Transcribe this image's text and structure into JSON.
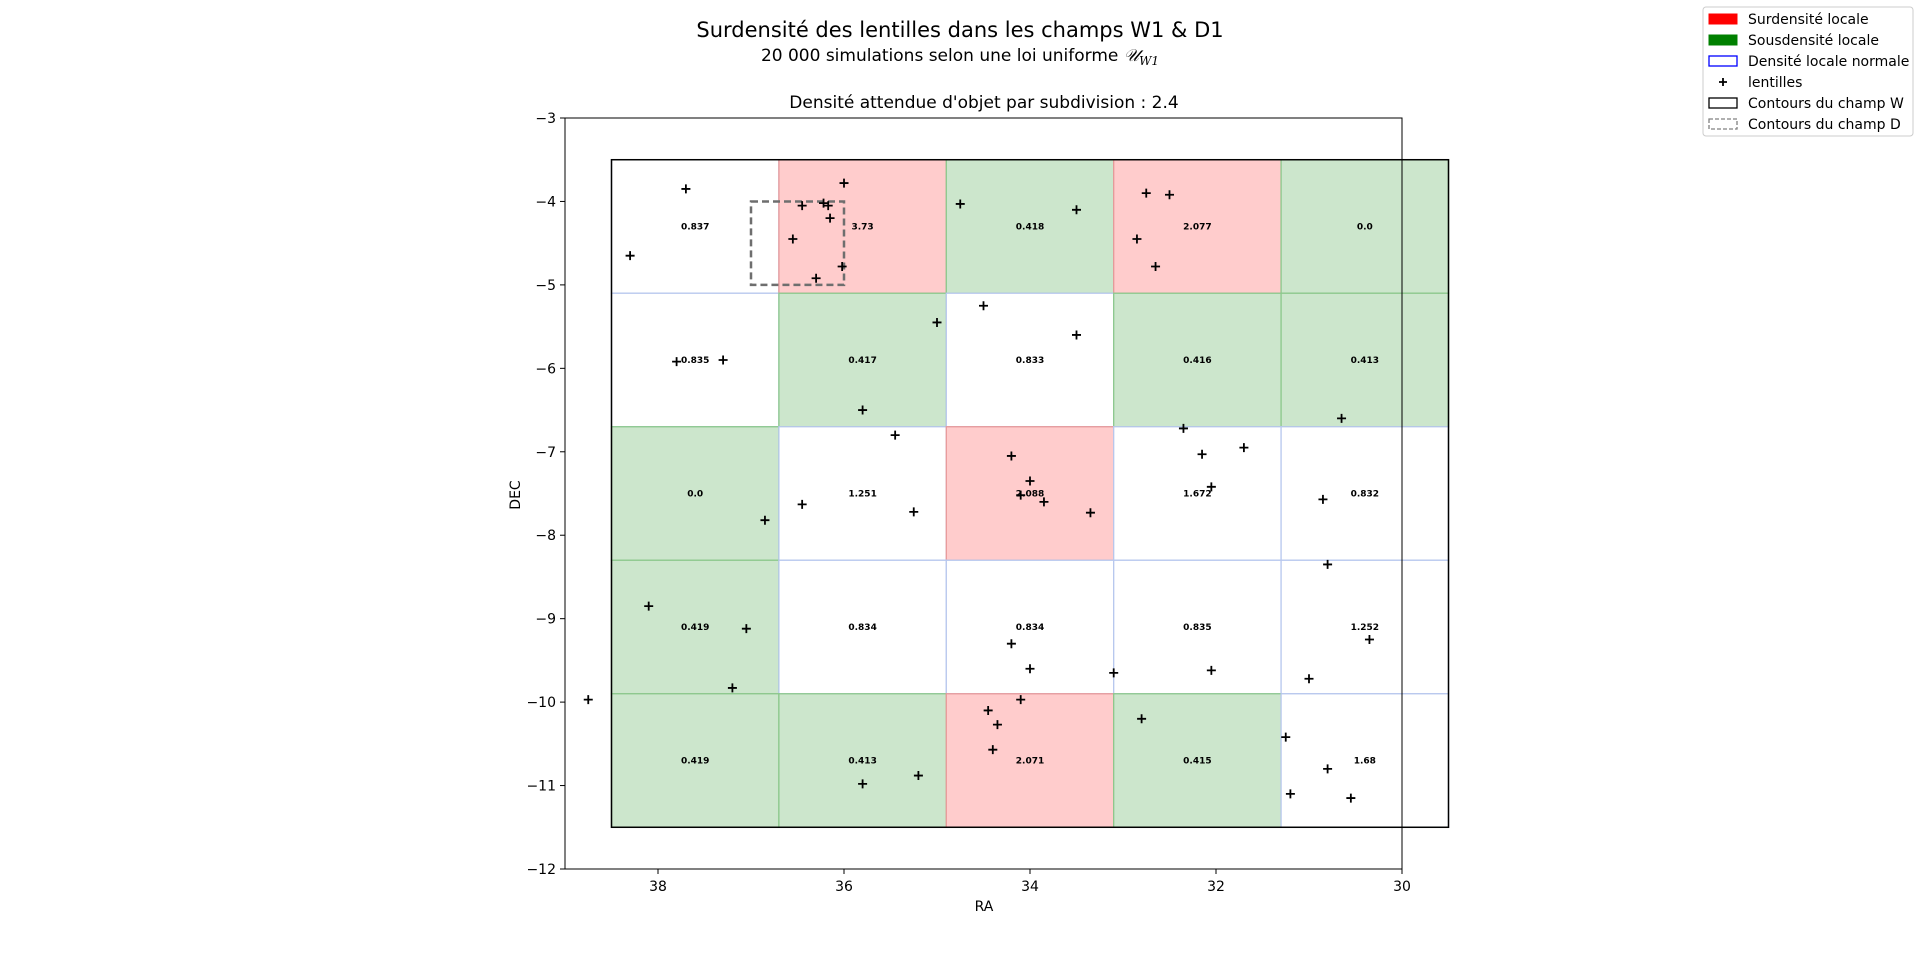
{
  "chart_data": {
    "type": "heatmap",
    "title": "Surdensité des lentilles dans les champs W1 & D1",
    "subtitle_prefix": "20 000 simulations selon une loi uniforme ",
    "subtitle_math": "𝒰",
    "subtitle_math_sub": "W1",
    "axes_title": "Densité attendue d'objet par subdivision : 2.4",
    "xlabel": "RA",
    "ylabel": "DEC",
    "xlim": [
      39.0,
      30.0
    ],
    "ylim": [
      -12,
      -3
    ],
    "x_inverted": true,
    "xticks": [
      38,
      36,
      34,
      32,
      30
    ],
    "yticks": [
      -3,
      -4,
      -5,
      -6,
      -7,
      -8,
      -9,
      -10,
      -11,
      -12
    ],
    "xtick_labels": [
      "38",
      "36",
      "34",
      "32",
      "30"
    ],
    "ytick_labels": [
      "−3",
      "−4",
      "−5",
      "−6",
      "−7",
      "−8",
      "−9",
      "−10",
      "−11",
      "−12"
    ],
    "grid": false,
    "legend_placement": "top-right (outside axes)",
    "colors": {
      "over": "#ff0000",
      "under": "#008000",
      "normal": "#0000ff",
      "field_w": "#000000",
      "field_d": "#808080"
    },
    "cell_fill_colors": {
      "over": "#ffcccc",
      "under": "#cce6cc",
      "normal": "#ffffff"
    },
    "field_w": {
      "ra": [
        38.5,
        29.5
      ],
      "dec": [
        -11.5,
        -3.5
      ]
    },
    "field_d": {
      "ra": [
        37.0,
        36.0
      ],
      "dec": [
        -5.0,
        -4.0
      ]
    },
    "ra_edges": [
      38.5,
      36.7,
      34.9,
      33.1,
      31.3,
      29.5
    ],
    "dec_edges": [
      -3.5,
      -5.1,
      -6.7,
      -8.3,
      -9.9,
      -11.5
    ],
    "cells": [
      {
        "row": 0,
        "col": 0,
        "value": "0.837",
        "status": "normal"
      },
      {
        "row": 0,
        "col": 1,
        "value": "3.73",
        "status": "over"
      },
      {
        "row": 0,
        "col": 2,
        "value": "0.418",
        "status": "under"
      },
      {
        "row": 0,
        "col": 3,
        "value": "2.077",
        "status": "over"
      },
      {
        "row": 0,
        "col": 4,
        "value": "0.0",
        "status": "under"
      },
      {
        "row": 1,
        "col": 0,
        "value": "0.835",
        "status": "normal"
      },
      {
        "row": 1,
        "col": 1,
        "value": "0.417",
        "status": "under"
      },
      {
        "row": 1,
        "col": 2,
        "value": "0.833",
        "status": "normal"
      },
      {
        "row": 1,
        "col": 3,
        "value": "0.416",
        "status": "under"
      },
      {
        "row": 1,
        "col": 4,
        "value": "0.413",
        "status": "under"
      },
      {
        "row": 2,
        "col": 0,
        "value": "0.0",
        "status": "under"
      },
      {
        "row": 2,
        "col": 1,
        "value": "1.251",
        "status": "normal"
      },
      {
        "row": 2,
        "col": 2,
        "value": "2.088",
        "status": "over"
      },
      {
        "row": 2,
        "col": 3,
        "value": "1.672",
        "status": "normal"
      },
      {
        "row": 2,
        "col": 4,
        "value": "0.832",
        "status": "normal"
      },
      {
        "row": 3,
        "col": 0,
        "value": "0.419",
        "status": "under"
      },
      {
        "row": 3,
        "col": 1,
        "value": "0.834",
        "status": "normal"
      },
      {
        "row": 3,
        "col": 2,
        "value": "0.834",
        "status": "normal"
      },
      {
        "row": 3,
        "col": 3,
        "value": "0.835",
        "status": "normal"
      },
      {
        "row": 3,
        "col": 4,
        "value": "1.252",
        "status": "normal"
      },
      {
        "row": 4,
        "col": 0,
        "value": "0.419",
        "status": "under"
      },
      {
        "row": 4,
        "col": 1,
        "value": "0.413",
        "status": "under"
      },
      {
        "row": 4,
        "col": 2,
        "value": "2.071",
        "status": "over"
      },
      {
        "row": 4,
        "col": 3,
        "value": "0.415",
        "status": "under"
      },
      {
        "row": 4,
        "col": 4,
        "value": "1.68",
        "status": "normal"
      }
    ],
    "lenses": [
      [
        37.7,
        -3.85
      ],
      [
        38.3,
        -4.65
      ],
      [
        36.0,
        -3.78
      ],
      [
        36.45,
        -4.05
      ],
      [
        36.22,
        -4.02
      ],
      [
        36.17,
        -4.05
      ],
      [
        36.15,
        -4.2
      ],
      [
        36.55,
        -4.45
      ],
      [
        36.02,
        -4.78
      ],
      [
        36.3,
        -4.92
      ],
      [
        34.75,
        -4.03
      ],
      [
        33.5,
        -4.1
      ],
      [
        32.75,
        -3.9
      ],
      [
        32.5,
        -3.92
      ],
      [
        32.85,
        -4.45
      ],
      [
        32.65,
        -4.78
      ],
      [
        37.8,
        -5.92
      ],
      [
        37.3,
        -5.9
      ],
      [
        35.8,
        -6.5
      ],
      [
        34.5,
        -5.25
      ],
      [
        35.0,
        -5.45
      ],
      [
        33.5,
        -5.6
      ],
      [
        30.65,
        -6.6
      ],
      [
        35.45,
        -6.8
      ],
      [
        32.35,
        -6.72
      ],
      [
        31.7,
        -6.95
      ],
      [
        32.15,
        -7.03
      ],
      [
        36.85,
        -7.82
      ],
      [
        36.45,
        -7.63
      ],
      [
        34.2,
        -7.05
      ],
      [
        34.0,
        -7.35
      ],
      [
        34.1,
        -7.52
      ],
      [
        33.85,
        -7.6
      ],
      [
        35.25,
        -7.72
      ],
      [
        33.35,
        -7.73
      ],
      [
        32.05,
        -7.42
      ],
      [
        30.85,
        -7.57
      ],
      [
        38.1,
        -8.85
      ],
      [
        37.05,
        -9.12
      ],
      [
        30.8,
        -8.35
      ],
      [
        34.2,
        -9.3
      ],
      [
        34.0,
        -9.6
      ],
      [
        33.1,
        -9.65
      ],
      [
        32.05,
        -9.62
      ],
      [
        31.0,
        -9.72
      ],
      [
        30.35,
        -9.25
      ],
      [
        38.75,
        -9.97
      ],
      [
        37.2,
        -9.83
      ],
      [
        35.8,
        -10.98
      ],
      [
        34.45,
        -10.1
      ],
      [
        34.35,
        -10.27
      ],
      [
        34.1,
        -9.97
      ],
      [
        34.4,
        -10.57
      ],
      [
        35.2,
        -10.88
      ],
      [
        32.8,
        -10.2
      ],
      [
        31.25,
        -10.42
      ],
      [
        31.2,
        -11.1
      ],
      [
        30.8,
        -10.8
      ],
      [
        30.55,
        -11.15
      ]
    ],
    "legend": [
      {
        "label": "Surdensité locale",
        "kind": "patch-over"
      },
      {
        "label": "Sousdensité locale",
        "kind": "patch-under"
      },
      {
        "label": "Densité locale normale",
        "kind": "patch-normal"
      },
      {
        "label": "lentilles",
        "kind": "marker-plus"
      },
      {
        "label": "Contours du champ W",
        "kind": "patch-field-w"
      },
      {
        "label": "Contours du champ D",
        "kind": "patch-field-d"
      }
    ]
  }
}
